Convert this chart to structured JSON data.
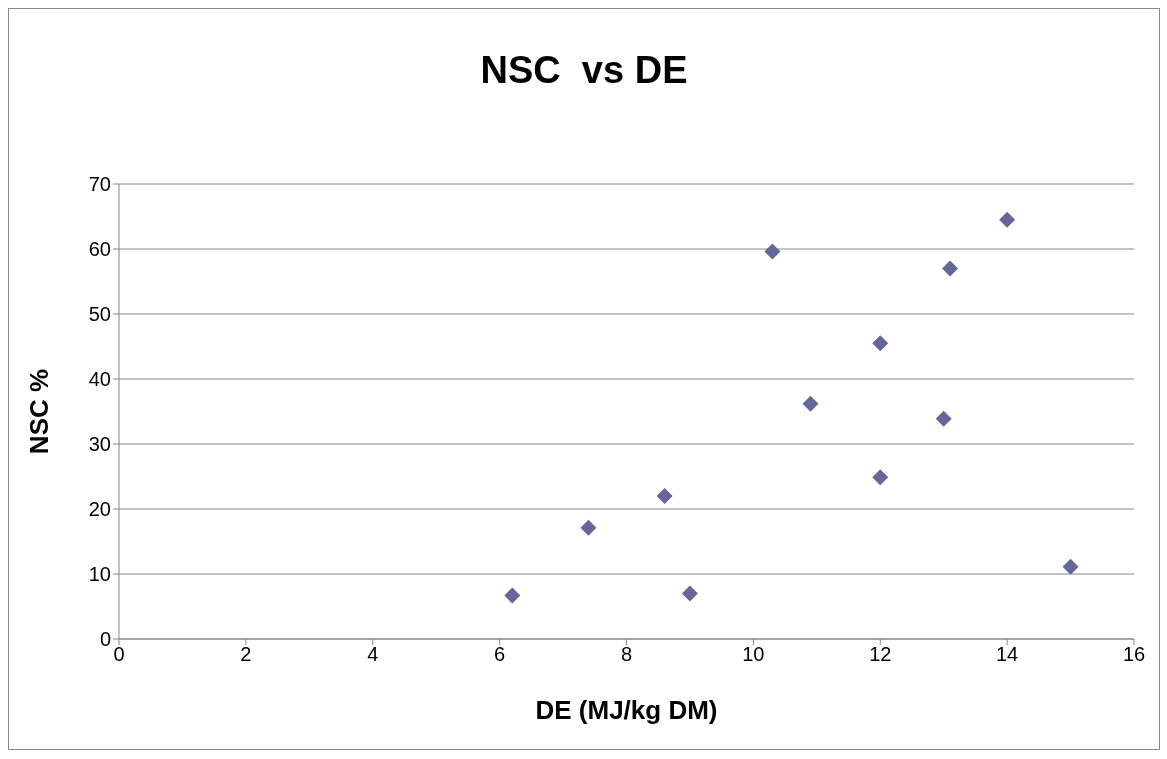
{
  "chart_data": {
    "type": "scatter",
    "title": "NSC  vs DE",
    "xlabel": "DE (MJ/kg DM)",
    "ylabel": "NSC %",
    "x": [
      6.2,
      7.4,
      8.6,
      9.0,
      10.3,
      10.9,
      12.0,
      12.0,
      13.0,
      13.1,
      14.0,
      15.0
    ],
    "series": [
      {
        "color": "#666699",
        "values": [
          6.7,
          17.1,
          22.0,
          7.0,
          59.6,
          36.2,
          45.5,
          24.9,
          33.9,
          57.0,
          64.5,
          11.1
        ]
      }
    ],
    "xlim": [
      0,
      16
    ],
    "xticks": [
      0,
      2,
      4,
      6,
      8,
      10,
      12,
      14,
      16
    ],
    "ylim": [
      0,
      70
    ],
    "yticks": [
      0,
      10,
      20,
      30,
      40,
      50,
      60,
      70
    ],
    "grid": "y",
    "marker": "diamond",
    "legend": false
  }
}
